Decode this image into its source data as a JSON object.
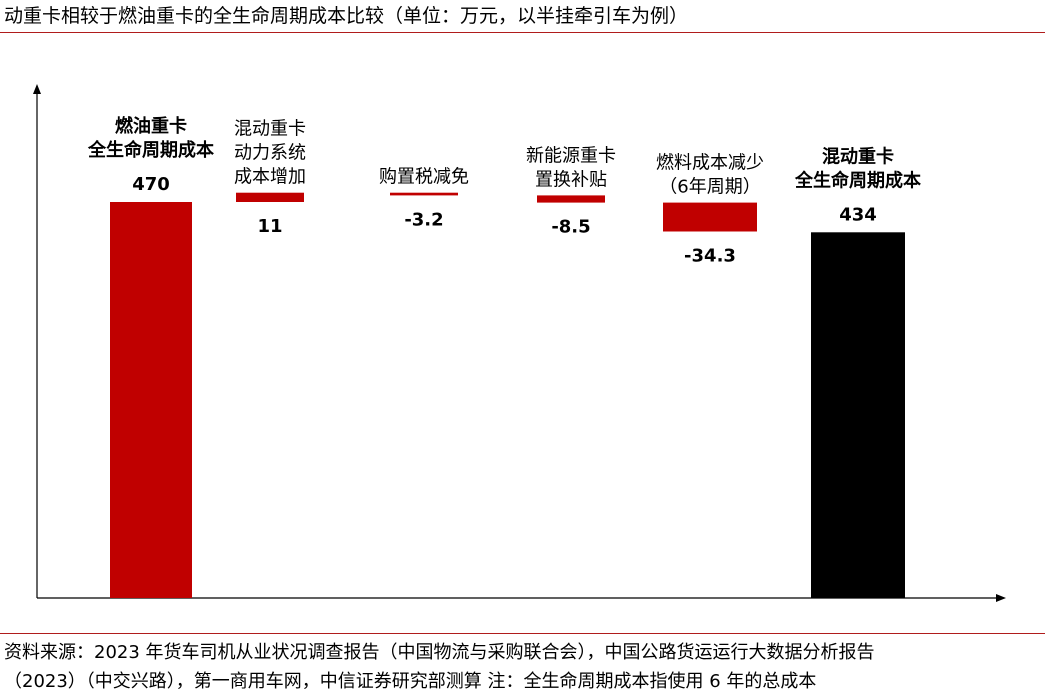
{
  "colors": {
    "increase": "#c00000",
    "decrease": "#c00000",
    "total_start": "#c00000",
    "total_end": "#000000",
    "axis": "#000000",
    "rule": "#b01c1c"
  },
  "chart_data": {
    "type": "bar",
    "subtype": "waterfall",
    "title": "动重卡相较于燃油重卡的全生命周期成本比较（单位：万元，以半挂牵引车为例）",
    "categories": [
      [
        "燃油重卡",
        "全生命周期成本"
      ],
      [
        "混动重卡",
        "动力系统",
        "成本增加"
      ],
      [
        "购置税减免"
      ],
      [
        "新能源重卡",
        "置换补贴"
      ],
      [
        "燃料成本减少",
        "（6年周期）"
      ],
      [
        "混动重卡",
        "全生命周期成本"
      ]
    ],
    "values": [
      470,
      11,
      -3.2,
      -8.5,
      -34.3,
      434
    ],
    "value_labels": [
      "470",
      "11",
      "-3.2",
      "-8.5",
      "-34.3",
      "434"
    ],
    "kinds": [
      "total",
      "delta",
      "delta",
      "delta",
      "delta",
      "total"
    ],
    "bold_categories": [
      true,
      false,
      false,
      false,
      false,
      true
    ],
    "ylim": [
      0,
      490
    ],
    "axes": {
      "x_arrow": true,
      "y_arrow": true,
      "ticks": false
    },
    "grid": false,
    "legend": "none"
  },
  "source": {
    "line1": "资料来源：2023 年货车司机从业状况调查报告（中国物流与采购联合会），中国公路货运运行大数据分析报告",
    "line2": "（2023）（中交兴路），第一商用车网，中信证券研究部测算   注：全生命周期成本指使用 6 年的总成本"
  }
}
